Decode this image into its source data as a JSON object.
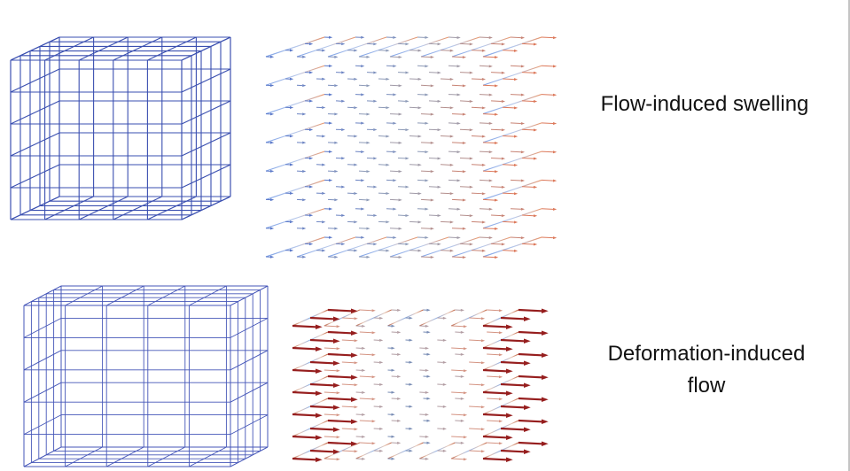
{
  "panels": [
    {
      "label": "Flow-induced swelling"
    },
    {
      "label": "Deformation-induced flow"
    }
  ]
}
